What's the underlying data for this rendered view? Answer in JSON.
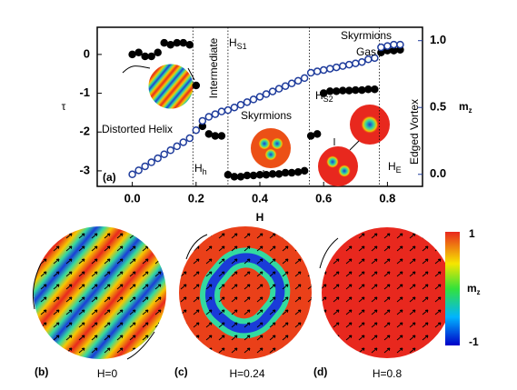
{
  "chart_data": {
    "type": "scatter",
    "xlabel": "H",
    "ylabel": "τ",
    "y2label": {
      "main": "m",
      "sub": "z"
    },
    "xlim": [
      -0.11,
      0.91
    ],
    "ylim": [
      -3.4,
      0.7
    ],
    "y2lim": [
      -0.09,
      1.1
    ],
    "xticks": [
      {
        "value": 0,
        "label": "0.0"
      },
      0.2,
      0.4,
      0.6,
      0.8
    ],
    "yticks": [
      0,
      -1,
      -2,
      -3
    ],
    "y2ticks": [
      {
        "value": 0,
        "label": "0.0"
      },
      0.5,
      {
        "value": 1,
        "label": "1.0"
      }
    ],
    "vlines": [
      0.19,
      0.3,
      0.555,
      0.775
    ],
    "x": [
      0,
      0.02,
      0.04,
      0.06,
      0.08,
      0.1,
      0.12,
      0.14,
      0.16,
      0.18,
      0.2,
      0.22,
      0.24,
      0.26,
      0.28,
      0.3,
      0.32,
      0.34,
      0.36,
      0.38,
      0.4,
      0.42,
      0.44,
      0.46,
      0.48,
      0.5,
      0.52,
      0.54,
      0.56,
      0.58,
      0.6,
      0.62,
      0.64,
      0.66,
      0.68,
      0.7,
      0.72,
      0.74,
      0.76,
      0.78,
      0.8,
      0.82,
      0.84
    ],
    "series": [
      {
        "color": "#000000",
        "marker": "filled",
        "values": [
          0.0,
          0.05,
          -0.05,
          -0.05,
          0.05,
          0.3,
          0.25,
          0.3,
          0.3,
          0.25,
          -0.8,
          -1.85,
          -2.05,
          -2.1,
          -2.1,
          -3.1,
          -3.15,
          -3.15,
          -3.12,
          -3.12,
          -3.1,
          -3.1,
          -3.08,
          -3.08,
          -3.05,
          -3.05,
          -3.03,
          -3.0,
          -2.1,
          -2.05,
          -1.0,
          -0.95,
          -0.95,
          -0.93,
          -0.93,
          -0.92,
          -0.92,
          -0.9,
          -0.9,
          0.05,
          0.1,
          0.1,
          0.12
        ]
      },
      {
        "color": "#1f3c9c",
        "marker": "open",
        "axis": "y2",
        "values": [
          0.0,
          0.03,
          0.06,
          0.09,
          0.12,
          0.15,
          0.18,
          0.21,
          0.24,
          0.27,
          0.33,
          0.4,
          0.43,
          0.45,
          0.47,
          0.48,
          0.5,
          0.52,
          0.54,
          0.56,
          0.58,
          0.6,
          0.62,
          0.64,
          0.66,
          0.68,
          0.7,
          0.72,
          0.76,
          0.77,
          0.78,
          0.79,
          0.8,
          0.81,
          0.82,
          0.83,
          0.84,
          0.86,
          0.87,
          0.95,
          0.96,
          0.97,
          0.97
        ]
      }
    ],
    "annotations": [
      {
        "text": "(a)"
      },
      {
        "text": "Distorted Helix"
      },
      {
        "text": "H",
        "sub": "h"
      },
      {
        "text": "Intermediate"
      },
      {
        "text": "H",
        "sub": "S1"
      },
      {
        "text": "Skyrmions"
      },
      {
        "text": "H",
        "sub": "S2"
      },
      {
        "text": "Skyrmions"
      },
      {
        "text": "Gas"
      },
      {
        "text": "H",
        "sub": "E"
      },
      {
        "text": "Edged Vortex"
      }
    ],
    "colorbar": {
      "lim": [
        -1,
        1
      ],
      "ticks": [
        1,
        -1
      ],
      "label": {
        "main": "m",
        "sub": "z"
      }
    },
    "panels": [
      {
        "tag": "(b)",
        "label": "H=0"
      },
      {
        "tag": "(c)",
        "label": "H=0.24"
      },
      {
        "tag": "(d)",
        "label": "H=0.8"
      }
    ]
  }
}
